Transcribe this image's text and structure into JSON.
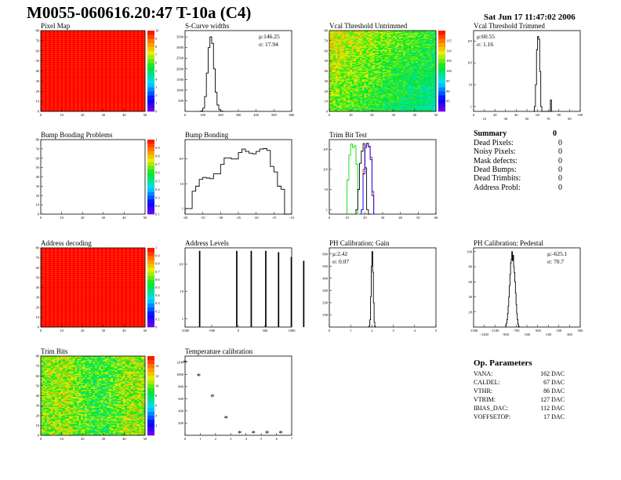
{
  "header": {
    "title": "M0055-060616.20:47 T-10a (C4)",
    "date": "Sat Jun 17 11:47:02 2006"
  },
  "summary": {
    "title": "Summary",
    "total": "0",
    "rows": [
      {
        "label": "Dead Pixels:",
        "value": "0"
      },
      {
        "label": "Noisy Pixels:",
        "value": "0"
      },
      {
        "label": "Mask defects:",
        "value": "0"
      },
      {
        "label": "Dead Bumps:",
        "value": "0"
      },
      {
        "label": "Dead Trimbits:",
        "value": "0"
      },
      {
        "label": "Address Probl:",
        "value": "0"
      }
    ]
  },
  "op_parameters": {
    "title": "Op. Parameters",
    "rows": [
      {
        "label": "VANA:",
        "value": "162 DAC"
      },
      {
        "label": "CALDEL:",
        "value": "67 DAC"
      },
      {
        "label": "VTHR:",
        "value": "86 DAC"
      },
      {
        "label": "VTRIM:",
        "value": "127 DAC"
      },
      {
        "label": "IBIAS_DAC:",
        "value": "112 DAC"
      },
      {
        "label": "VOFFSETOP:",
        "value": "17 DAC"
      }
    ]
  },
  "chart_data": [
    {
      "title": "Pixel Map",
      "type": "heatmap",
      "xlim": [
        0,
        52
      ],
      "ylim": [
        0,
        80
      ],
      "zlim": [
        0,
        10
      ],
      "fill": "uniform-max",
      "xticks": [
        "0",
        "10",
        "20",
        "30",
        "40",
        "50"
      ],
      "yticks": [
        "0",
        "10",
        "20",
        "30",
        "40",
        "50",
        "60",
        "70",
        "80"
      ],
      "zticks": [
        "0",
        "1",
        "2",
        "3",
        "4",
        "5",
        "6",
        "7",
        "8",
        "9",
        "10"
      ]
    },
    {
      "title": "S-Curve widths",
      "type": "bar",
      "xlim": [
        0,
        600
      ],
      "ylim": [
        0,
        3800
      ],
      "log": false,
      "xticks": [
        "0",
        "100",
        "200",
        "300",
        "400",
        "500",
        "600"
      ],
      "yticks": [
        "500",
        "1000",
        "1500",
        "2000",
        "2500",
        "3000",
        "3500"
      ],
      "stats": [
        "μ:146.25",
        "σ: 17.94"
      ],
      "series": [
        {
          "color": "#000000",
          "x0": 80,
          "w": 10,
          "values": [
            0,
            20,
            150,
            700,
            1800,
            3000,
            3500,
            3200,
            2000,
            900,
            300,
            80,
            10,
            0
          ]
        }
      ]
    },
    {
      "title": "Vcal Threshold Untrimmed",
      "type": "heatmap",
      "xlim": [
        0,
        52
      ],
      "ylim": [
        0,
        80
      ],
      "zlim": [
        80,
        120
      ],
      "fill": "gradient-topleft-high",
      "xticks": [
        "0",
        "10",
        "20",
        "30",
        "40",
        "50"
      ],
      "yticks": [
        "0",
        "10",
        "20",
        "30",
        "40",
        "50",
        "60",
        "70",
        "80"
      ],
      "zticks": [
        "85",
        "90",
        "95",
        "100",
        "105",
        "110",
        "115"
      ]
    },
    {
      "title": "Vcal Threshold Trimmed",
      "type": "bar",
      "xlim": [
        0,
        100
      ],
      "ylim": [
        0.6,
        3000
      ],
      "log": true,
      "xticks": [
        "0",
        "10",
        "20",
        "30",
        "40",
        "50",
        "60",
        "70",
        "80",
        "90",
        "100"
      ],
      "yticks": [
        "1",
        "10",
        "10²",
        "10³"
      ],
      "ytickvals": [
        1,
        10,
        100,
        1000
      ],
      "stats": [
        "μ:60.55",
        "σ: 1.16"
      ],
      "series": [
        {
          "color": "#000000",
          "x0": 56,
          "w": 1,
          "values": [
            0,
            1,
            10,
            400,
            1600,
            1200,
            40,
            1,
            0,
            0,
            0,
            0,
            0,
            0,
            0,
            0,
            2,
            0
          ]
        }
      ]
    },
    {
      "title": "Bump Bonding Problems",
      "type": "heatmap",
      "xlim": [
        0,
        52
      ],
      "ylim": [
        0,
        80
      ],
      "zlim": [
        0,
        1
      ],
      "fill": "empty",
      "xticks": [
        "0",
        "10",
        "20",
        "30",
        "40",
        "50"
      ],
      "yticks": [
        "0",
        "10",
        "20",
        "30",
        "40",
        "50",
        "60",
        "70",
        "80"
      ],
      "zticks": [
        "0.1",
        "0.2",
        "0.3",
        "0.4",
        "0.5",
        "0.6",
        "0.7",
        "0.8",
        "0.9",
        "1"
      ]
    },
    {
      "title": "Bump Bonding",
      "type": "bar",
      "xlim": [
        -40,
        -10
      ],
      "ylim": [
        0.6,
        600
      ],
      "log": true,
      "xticks": [
        "-40",
        "-35",
        "-30",
        "-25",
        "-20",
        "-15",
        "-10"
      ],
      "yticks": [
        "1",
        "10",
        "10²"
      ],
      "ytickvals": [
        1,
        10,
        100
      ],
      "series": [
        {
          "color": "#000000",
          "x0": -40,
          "w": 1,
          "values": [
            1,
            1,
            5,
            8,
            15,
            18,
            17,
            16,
            25,
            25,
            60,
            110,
            110,
            100,
            100,
            180,
            250,
            200,
            170,
            160,
            200,
            250,
            260,
            220,
            50,
            30,
            8,
            6,
            0,
            0
          ]
        }
      ]
    },
    {
      "title": "Trim Bit Test",
      "type": "bar",
      "xlim": [
        0,
        60
      ],
      "ylim": [
        0.6,
        3000
      ],
      "log": true,
      "xticks": [
        "0",
        "10",
        "20",
        "30",
        "40",
        "50",
        "60"
      ],
      "yticks": [
        "1",
        "10",
        "10²",
        "10³"
      ],
      "ytickvals": [
        1,
        10,
        100,
        1000
      ],
      "series": [
        {
          "color": "#00dd00",
          "x0": 10,
          "w": 1,
          "values": [
            30,
            500,
            1800,
            1200,
            1500,
            180,
            0
          ]
        },
        {
          "color": "#000000",
          "x0": 15,
          "w": 1,
          "values": [
            1,
            10,
            200,
            800,
            1900,
            120,
            1,
            0
          ]
        },
        {
          "color": "#ff0000",
          "x0": 18,
          "w": 1,
          "values": [
            1,
            100,
            1500,
            2000,
            1400,
            400,
            8,
            0
          ]
        },
        {
          "color": "#0000ff",
          "x0": 18,
          "w": 1,
          "values": [
            1,
            60,
            1200,
            1900,
            1300,
            300,
            5,
            0
          ]
        }
      ]
    },
    {
      "title": "Address decoding",
      "type": "heatmap",
      "xlim": [
        0,
        52
      ],
      "ylim": [
        0,
        80
      ],
      "zlim": [
        0,
        1
      ],
      "fill": "uniform-max",
      "xticks": [
        "0",
        "10",
        "20",
        "30",
        "40",
        "50"
      ],
      "yticks": [
        "0",
        "10",
        "20",
        "30",
        "40",
        "50",
        "60",
        "70",
        "80"
      ],
      "zticks": [
        "0",
        "0.1",
        "0.2",
        "0.3",
        "0.4",
        "0.5",
        "0.6",
        "0.7",
        "0.8",
        "0.9",
        "1"
      ]
    },
    {
      "title": "Address Levels",
      "type": "bar",
      "xlim": [
        -1500,
        1000
      ],
      "ylim": [
        0.5,
        400
      ],
      "log": true,
      "xticks": [
        "-1000",
        "-500",
        "0",
        "500",
        "1000"
      ],
      "yticks": [
        "1",
        "10",
        "10²"
      ],
      "ytickvals": [
        1,
        10,
        100
      ],
      "series": [
        {
          "color": "#000000",
          "w": 15,
          "spikes": [
            [
              -1150,
              300
            ],
            [
              -280,
              300
            ],
            [
              60,
              300
            ],
            [
              400,
              300
            ],
            [
              700,
              270
            ],
            [
              1000,
              180
            ],
            [
              1290,
              130
            ]
          ]
        }
      ]
    },
    {
      "title": "PH Calibration: Gain",
      "type": "bar",
      "xlim": [
        0,
        6
      ],
      "ylim": [
        0,
        650
      ],
      "log": false,
      "xticks": [
        "0",
        "1",
        "2",
        "3",
        "4",
        "5"
      ],
      "yticks": [
        "100",
        "200",
        "300",
        "400",
        "500",
        "600"
      ],
      "stats": [
        "μ:2.42",
        "σ: 0.07"
      ],
      "series": [
        {
          "color": "#000000",
          "x0": 2.2,
          "w": 0.04,
          "values": [
            0,
            10,
            60,
            250,
            500,
            620,
            450,
            200,
            40,
            5,
            0
          ]
        }
      ]
    },
    {
      "title": "PH Calibration: Pedestal",
      "type": "bar",
      "xlim": [
        -1500,
        600
      ],
      "ylim": [
        0,
        105
      ],
      "log": false,
      "xticks": [
        "-1500",
        "-1300",
        "-1100",
        "-900",
        "-700",
        "-500",
        "-300",
        "-100",
        "100",
        "300",
        "500"
      ],
      "yticks": [
        "20",
        "40",
        "60",
        "80",
        "100"
      ],
      "stats": [
        "μ:-625.1",
        "σ: 70.7"
      ],
      "series": [
        {
          "color": "#000000",
          "x0": -880,
          "w": 12,
          "values": [
            0,
            2,
            5,
            10,
            18,
            28,
            40,
            55,
            70,
            85,
            90,
            100,
            88,
            95,
            80,
            72,
            60,
            45,
            30,
            18,
            10,
            4,
            1,
            0
          ]
        }
      ]
    },
    {
      "title": "Trim Bits",
      "type": "heatmap",
      "xlim": [
        0,
        52
      ],
      "ylim": [
        0,
        80
      ],
      "zlim": [
        0,
        15
      ],
      "fill": "random-mid",
      "xticks": [
        "0",
        "10",
        "20",
        "30",
        "40",
        "50"
      ],
      "yticks": [
        "0",
        "10",
        "20",
        "30",
        "40",
        "50",
        "60",
        "70",
        "80"
      ],
      "zticks": [
        "2",
        "4",
        "6",
        "8",
        "10",
        "12",
        "14"
      ]
    },
    {
      "title": "Temperature calibration",
      "type": "scatter",
      "xlim": [
        0,
        7.8
      ],
      "ylim": [
        0,
        1300
      ],
      "log": false,
      "xticks": [
        "0",
        "1",
        "2",
        "3",
        "4",
        "5",
        "6",
        "7"
      ],
      "yticks": [
        "200",
        "400",
        "600",
        "800",
        "1000",
        "1200"
      ],
      "series": [
        {
          "color": "#000000",
          "x": [
            0,
            1,
            2,
            3,
            4,
            5,
            6,
            7
          ],
          "y": [
            1200,
            980,
            640,
            280,
            40,
            40,
            40,
            40
          ]
        }
      ]
    }
  ]
}
